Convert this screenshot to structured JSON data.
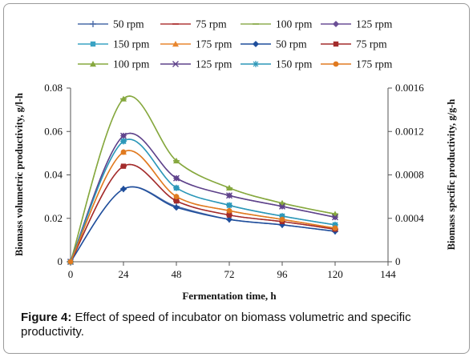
{
  "chart_data": {
    "type": "line",
    "xlabel": "Fermentation time, h",
    "ylabel": "Biomass volumetric productivity, g/l-h",
    "y2label": "Biomass specific productivity, g/g-h",
    "xlim": [
      0,
      144
    ],
    "ylim": [
      0,
      0.08
    ],
    "y2lim": [
      0,
      0.0016
    ],
    "x_ticks": [
      "0",
      "24",
      "48",
      "72",
      "96",
      "120",
      "144"
    ],
    "y_ticks": [
      "0",
      "0.02",
      "0.04",
      "0.06",
      "0.08"
    ],
    "y2_ticks": [
      "0",
      "0.0004",
      "0.0008",
      "0.0012",
      "0.0016"
    ],
    "grid": false,
    "legend_position": "top",
    "x": [
      0,
      24,
      48,
      72,
      96,
      120
    ],
    "series": [
      {
        "name": "50 rpm",
        "axis": "left",
        "color": "#4a6ba8",
        "marker": "plus",
        "values": [
          0,
          0.0335,
          0.0255,
          0.0195,
          0.017,
          0.014
        ]
      },
      {
        "name": "75 rpm",
        "axis": "left",
        "color": "#b03a3a",
        "marker": "dash",
        "values": [
          0,
          0.044,
          0.028,
          0.0215,
          0.0185,
          0.015
        ]
      },
      {
        "name": "100 rpm",
        "axis": "left",
        "color": "#8fae52",
        "marker": "dash",
        "values": [
          0,
          0.075,
          0.0465,
          0.034,
          0.027,
          0.022
        ]
      },
      {
        "name": "125 rpm",
        "axis": "left",
        "color": "#6b4f96",
        "marker": "diamond",
        "values": [
          0,
          0.058,
          0.0385,
          0.0305,
          0.0255,
          0.0205
        ]
      },
      {
        "name": "150 rpm",
        "axis": "left",
        "color": "#3aa3c4",
        "marker": "square",
        "values": [
          0,
          0.0555,
          0.034,
          0.026,
          0.021,
          0.017
        ]
      },
      {
        "name": "175 rpm",
        "axis": "left",
        "color": "#e8862e",
        "marker": "triangle",
        "values": [
          0,
          0.0505,
          0.03,
          0.0235,
          0.0195,
          0.0155
        ]
      },
      {
        "name": "50 rpm",
        "axis": "right",
        "color": "#1f4e9c",
        "marker": "diamond",
        "values": [
          0,
          0.00067,
          0.0005,
          0.00039,
          0.00034,
          0.00028
        ]
      },
      {
        "name": "75 rpm",
        "axis": "right",
        "color": "#a32c2c",
        "marker": "square",
        "values": [
          0,
          0.00088,
          0.00056,
          0.00043,
          0.00037,
          0.0003
        ]
      },
      {
        "name": "100 rpm",
        "axis": "right",
        "color": "#86a83e",
        "marker": "triangle",
        "values": [
          0,
          0.0015,
          0.00093,
          0.00068,
          0.00054,
          0.00044
        ]
      },
      {
        "name": "125 rpm",
        "axis": "right",
        "color": "#5e428a",
        "marker": "cross",
        "values": [
          0,
          0.00116,
          0.00077,
          0.00061,
          0.00051,
          0.00041
        ]
      },
      {
        "name": "150 rpm",
        "axis": "right",
        "color": "#2c97b8",
        "marker": "star",
        "values": [
          0,
          0.00111,
          0.00068,
          0.00052,
          0.00042,
          0.00034
        ]
      },
      {
        "name": "175 rpm",
        "axis": "right",
        "color": "#e07a20",
        "marker": "circle",
        "values": [
          0,
          0.00101,
          0.0006,
          0.00047,
          0.00039,
          0.00031
        ]
      }
    ]
  },
  "caption": {
    "label": "Figure 4:",
    "text": " Effect of speed of incubator on biomass volumetric and specific productivity."
  }
}
